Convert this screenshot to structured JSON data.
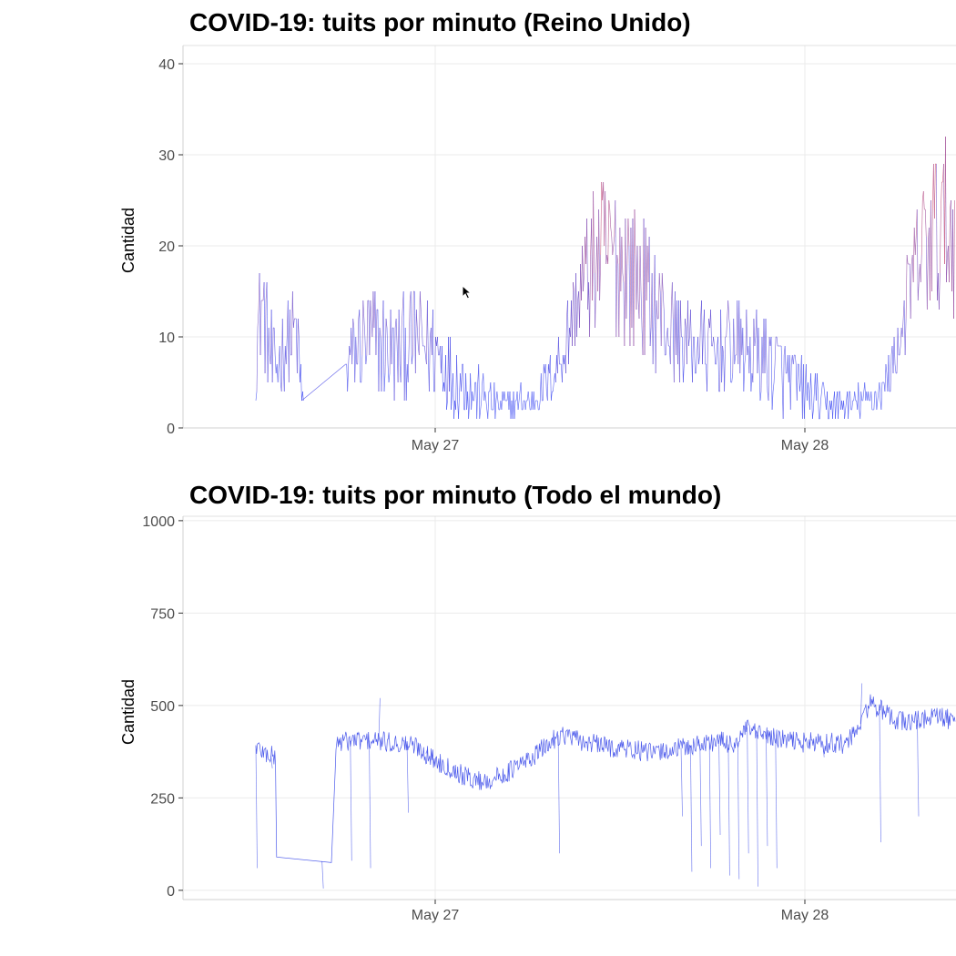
{
  "chart_data": [
    {
      "id": "uk",
      "type": "line",
      "title": "COVID-19: tuits por minuto (Reino Unido)",
      "xlabel": "",
      "ylabel": "Cantidad",
      "ylim": [
        0,
        42
      ],
      "yticks": [
        0,
        10,
        20,
        30,
        40
      ],
      "ytick_labels": [
        "0",
        "10",
        "20",
        "30",
        "40"
      ],
      "xticks": [
        "May 27",
        "May 28"
      ],
      "grid": true,
      "color_scale": {
        "low": "#1f2ef0",
        "high": "#f03030",
        "low_value": 5,
        "high_value": 35
      },
      "series": [
        {
          "values": [
            [
              0,
              9
            ],
            [
              0.5,
              14
            ],
            [
              1.5,
              6
            ],
            [
              2.5,
              9
            ],
            [
              3.5,
              11
            ],
            [
              4,
              3
            ],
            [
              8,
              7
            ],
            [
              9,
              9
            ],
            [
              10,
              10
            ],
            [
              11,
              9
            ],
            [
              12,
              8
            ],
            [
              13,
              9
            ],
            [
              14,
              10
            ],
            [
              15,
              9
            ],
            [
              16,
              8
            ],
            [
              17,
              6
            ],
            [
              18,
              5
            ],
            [
              19,
              4
            ],
            [
              20,
              3
            ],
            [
              21,
              2.5
            ],
            [
              22,
              2.5
            ],
            [
              23,
              3
            ],
            [
              24,
              3
            ],
            [
              25,
              4
            ],
            [
              26,
              6
            ],
            [
              27,
              9
            ],
            [
              28,
              14
            ],
            [
              29,
              17
            ],
            [
              30,
              19
            ],
            [
              31,
              19
            ],
            [
              32,
              18
            ],
            [
              33,
              17
            ],
            [
              34,
              15
            ],
            [
              35,
              13
            ],
            [
              36,
              11
            ],
            [
              37,
              10
            ],
            [
              38,
              9
            ],
            [
              39,
              9
            ],
            [
              40,
              8
            ],
            [
              41,
              9
            ],
            [
              42,
              9
            ],
            [
              43,
              8
            ],
            [
              44,
              8
            ],
            [
              45,
              7
            ],
            [
              46,
              6
            ],
            [
              47,
              5
            ],
            [
              48,
              4
            ],
            [
              49,
              3
            ],
            [
              50,
              2.5
            ],
            [
              51,
              2.5
            ],
            [
              52,
              2.5
            ],
            [
              53,
              3
            ],
            [
              54,
              3
            ],
            [
              55,
              5
            ],
            [
              56,
              9
            ],
            [
              57,
              15
            ],
            [
              58,
              19
            ],
            [
              59,
              21
            ],
            [
              60,
              22
            ],
            [
              61,
              22
            ]
          ],
          "spread": [
            6,
            6,
            5,
            5,
            5,
            1,
            5,
            6,
            6,
            6,
            6,
            6,
            6,
            6,
            5,
            5,
            4,
            3,
            2.5,
            2,
            2,
            2,
            2,
            3,
            4,
            5,
            7,
            8,
            9,
            9,
            9,
            8,
            7,
            6,
            6,
            5,
            5,
            5,
            5,
            5,
            5,
            5,
            5,
            5,
            4,
            4,
            3,
            2.5,
            2,
            2,
            2,
            2,
            2,
            3,
            5,
            7,
            9,
            10,
            10,
            10
          ]
        }
      ]
    },
    {
      "id": "world",
      "type": "line",
      "title": "COVID-19: tuits por minuto (Todo el mundo)",
      "xlabel": "",
      "ylabel": "Cantidad",
      "ylim": [
        -25,
        1012
      ],
      "yticks": [
        0,
        250,
        500,
        750,
        1000
      ],
      "ytick_labels": [
        "0",
        "250",
        "500",
        "750",
        "1000"
      ],
      "xticks": [
        "May 27",
        "May 28"
      ],
      "grid": true,
      "line_color": "#2233e6",
      "series": [
        {
          "values": [
            [
              0,
              390
            ],
            [
              1,
              370
            ],
            [
              2,
              360
            ],
            [
              4,
              90
            ],
            [
              8,
              75
            ],
            [
              8.5,
              400
            ],
            [
              10,
              405
            ],
            [
              12,
              405
            ],
            [
              14,
              400
            ],
            [
              16,
              395
            ],
            [
              17,
              390
            ],
            [
              18,
              370
            ],
            [
              19,
              350
            ],
            [
              20,
              340
            ],
            [
              21,
              325
            ],
            [
              22,
              310
            ],
            [
              23,
              300
            ],
            [
              24,
              295
            ],
            [
              25,
              300
            ],
            [
              26,
              310
            ],
            [
              27,
              325
            ],
            [
              28,
              340
            ],
            [
              29,
              355
            ],
            [
              30,
              375
            ],
            [
              31,
              395
            ],
            [
              32,
              420
            ],
            [
              33,
              420
            ],
            [
              34,
              405
            ],
            [
              35,
              400
            ],
            [
              36,
              395
            ],
            [
              37,
              390
            ],
            [
              38,
              385
            ],
            [
              39,
              385
            ],
            [
              40,
              380
            ],
            [
              41,
              375
            ],
            [
              42,
              370
            ],
            [
              43,
              375
            ],
            [
              44,
              380
            ],
            [
              45,
              385
            ],
            [
              46,
              390
            ],
            [
              47,
              395
            ],
            [
              48,
              400
            ],
            [
              49,
              405
            ],
            [
              50,
              395
            ],
            [
              51,
              400
            ],
            [
              52,
              440
            ],
            [
              53,
              420
            ],
            [
              54,
              420
            ],
            [
              55,
              410
            ],
            [
              56,
              405
            ],
            [
              57,
              405
            ],
            [
              58,
              400
            ],
            [
              59,
              400
            ],
            [
              60,
              395
            ],
            [
              61,
              400
            ],
            [
              62,
              395
            ],
            [
              63,
              410
            ],
            [
              64,
              450
            ],
            [
              65,
              510
            ],
            [
              66,
              490
            ],
            [
              67,
              470
            ],
            [
              68,
              460
            ],
            [
              69,
              455
            ],
            [
              70,
              460
            ],
            [
              71,
              465
            ],
            [
              72,
              470
            ],
            [
              73,
              465
            ],
            [
              74,
              455
            ]
          ],
          "spikes": [
            [
              0,
              60
            ],
            [
              1.6,
              330
            ],
            [
              7,
              5
            ],
            [
              10,
              80
            ],
            [
              12,
              60
            ],
            [
              13,
              520
            ],
            [
              16,
              210
            ],
            [
              18,
              380
            ],
            [
              32,
              100
            ],
            [
              45,
              200
            ],
            [
              46,
              50
            ],
            [
              47,
              120
            ],
            [
              48,
              60
            ],
            [
              49,
              150
            ],
            [
              50,
              40
            ],
            [
              51,
              30
            ],
            [
              52,
              100
            ],
            [
              53,
              10
            ],
            [
              54,
              120
            ],
            [
              55,
              60
            ],
            [
              60,
              360
            ],
            [
              64,
              560
            ],
            [
              66,
              130
            ],
            [
              70,
              200
            ]
          ]
        }
      ]
    }
  ]
}
